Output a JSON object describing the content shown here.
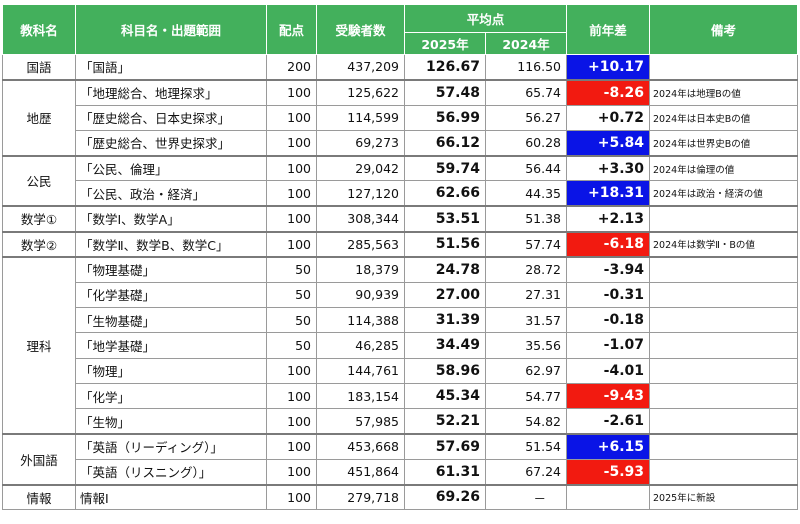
{
  "headers": {
    "category": "教科名",
    "subject": "科目名・出題範囲",
    "points": "配点",
    "examinees": "受験者数",
    "average": "平均点",
    "year2025": "2025年",
    "year2024": "2024年",
    "diff": "前年差",
    "note": "備考"
  },
  "groups": [
    {
      "category": "国語",
      "rows": [
        {
          "subject": "「国語」",
          "points": "200",
          "examinees": "437,209",
          "avg2025": "126.67",
          "avg2024": "116.50",
          "diff": "+10.17",
          "sign": "pos",
          "note": ""
        }
      ]
    },
    {
      "category": "地歴",
      "rows": [
        {
          "subject": "「地理総合、地理探求」",
          "points": "100",
          "examinees": "125,622",
          "avg2025": "57.48",
          "avg2024": "65.74",
          "diff": "-8.26",
          "sign": "neg",
          "note": "2024年は地理Bの値"
        },
        {
          "subject": "「歴史総合、日本史探求」",
          "points": "100",
          "examinees": "114,599",
          "avg2025": "56.99",
          "avg2024": "56.27",
          "diff": "+0.72",
          "sign": "",
          "note": "2024年は日本史Bの値"
        },
        {
          "subject": "「歴史総合、世界史探求」",
          "points": "100",
          "examinees": "69,273",
          "avg2025": "66.12",
          "avg2024": "60.28",
          "diff": "+5.84",
          "sign": "pos",
          "note": "2024年は世界史Bの値"
        }
      ]
    },
    {
      "category": "公民",
      "rows": [
        {
          "subject": "「公民、倫理」",
          "points": "100",
          "examinees": "29,042",
          "avg2025": "59.74",
          "avg2024": "56.44",
          "diff": "+3.30",
          "sign": "",
          "note": "2024年は倫理の値"
        },
        {
          "subject": "「公民、政治・経済」",
          "points": "100",
          "examinees": "127,120",
          "avg2025": "62.66",
          "avg2024": "44.35",
          "diff": "+18.31",
          "sign": "pos",
          "note": "2024年は政治・経済の値"
        }
      ]
    },
    {
      "category": "数学①",
      "rows": [
        {
          "subject": "「数学Ⅰ、数学A」",
          "points": "100",
          "examinees": "308,344",
          "avg2025": "53.51",
          "avg2024": "51.38",
          "diff": "+2.13",
          "sign": "",
          "note": ""
        }
      ]
    },
    {
      "category": "数学②",
      "rows": [
        {
          "subject": "「数学Ⅱ、数学B、数学C」",
          "points": "100",
          "examinees": "285,563",
          "avg2025": "51.56",
          "avg2024": "57.74",
          "diff": "-6.18",
          "sign": "neg",
          "note": "2024年は数学Ⅱ・Bの値"
        }
      ]
    },
    {
      "category": "理科",
      "rows": [
        {
          "subject": "「物理基礎」",
          "points": "50",
          "examinees": "18,379",
          "avg2025": "24.78",
          "avg2024": "28.72",
          "diff": "-3.94",
          "sign": "",
          "note": ""
        },
        {
          "subject": "「化学基礎」",
          "points": "50",
          "examinees": "90,939",
          "avg2025": "27.00",
          "avg2024": "27.31",
          "diff": "-0.31",
          "sign": "",
          "note": ""
        },
        {
          "subject": "「生物基礎」",
          "points": "50",
          "examinees": "114,388",
          "avg2025": "31.39",
          "avg2024": "31.57",
          "diff": "-0.18",
          "sign": "",
          "note": ""
        },
        {
          "subject": "「地学基礎」",
          "points": "50",
          "examinees": "46,285",
          "avg2025": "34.49",
          "avg2024": "35.56",
          "diff": "-1.07",
          "sign": "",
          "note": ""
        },
        {
          "subject": "「物理」",
          "points": "100",
          "examinees": "144,761",
          "avg2025": "58.96",
          "avg2024": "62.97",
          "diff": "-4.01",
          "sign": "",
          "note": ""
        },
        {
          "subject": "「化学」",
          "points": "100",
          "examinees": "183,154",
          "avg2025": "45.34",
          "avg2024": "54.77",
          "diff": "-9.43",
          "sign": "neg",
          "note": ""
        },
        {
          "subject": "「生物」",
          "points": "100",
          "examinees": "57,985",
          "avg2025": "52.21",
          "avg2024": "54.82",
          "diff": "-2.61",
          "sign": "",
          "note": ""
        }
      ]
    },
    {
      "category": "外国語",
      "rows": [
        {
          "subject": "「英語（リーディング）」",
          "points": "100",
          "examinees": "453,668",
          "avg2025": "57.69",
          "avg2024": "51.54",
          "diff": "+6.15",
          "sign": "pos",
          "note": ""
        },
        {
          "subject": "「英語（リスニング）」",
          "points": "100",
          "examinees": "451,864",
          "avg2025": "61.31",
          "avg2024": "67.24",
          "diff": "-5.93",
          "sign": "neg",
          "note": ""
        }
      ]
    },
    {
      "category": "情報",
      "rows": [
        {
          "subject": "情報Ⅰ",
          "points": "100",
          "examinees": "279,718",
          "avg2025": "69.26",
          "avg2024": "－",
          "diff": "",
          "sign": "",
          "note": "2025年に新設"
        }
      ]
    }
  ],
  "colors": {
    "header_bg": "#43b05c",
    "positive_bg": "#0a14e6",
    "negative_bg": "#f21a10"
  }
}
